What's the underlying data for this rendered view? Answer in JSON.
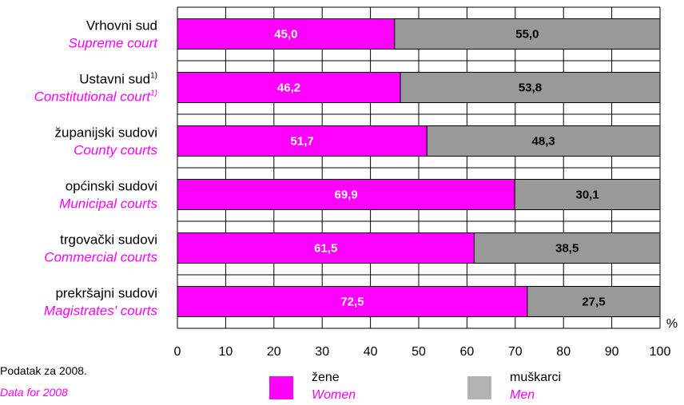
{
  "chart_data": {
    "type": "bar",
    "orientation": "horizontal",
    "stacked": true,
    "categories": [
      {
        "label": "Vrhovni sud",
        "label_en": "Supreme court",
        "footnote": ""
      },
      {
        "label": "Ustavni sud",
        "label_en": "Constitutional court",
        "footnote": "1)"
      },
      {
        "label": "županijski sudovi",
        "label_en": "County courts",
        "footnote": ""
      },
      {
        "label": "općinski sudovi",
        "label_en": "Municipal courts",
        "footnote": ""
      },
      {
        "label": "trgovački sudovi",
        "label_en": "Commercial courts",
        "footnote": ""
      },
      {
        "label": "prekršajni sudovi",
        "label_en": "Magistrates' courts",
        "footnote": ""
      }
    ],
    "series": [
      {
        "name": "žene",
        "name_en": "Women",
        "color": "#ff00ff",
        "values": [
          45.0,
          46.2,
          51.7,
          69.9,
          61.5,
          72.5
        ],
        "labels": [
          "45,0",
          "46,2",
          "51,7",
          "69,9",
          "61,5",
          "72,5"
        ]
      },
      {
        "name": "muškarci",
        "name_en": "Men",
        "color": "#999999",
        "values": [
          55.0,
          53.8,
          48.3,
          30.1,
          38.5,
          27.5
        ],
        "labels": [
          "55,0",
          "53,8",
          "48,3",
          "30,1",
          "38,5",
          "27,5"
        ]
      }
    ],
    "xlim": [
      0,
      100
    ],
    "xticks": [
      0,
      10,
      20,
      30,
      40,
      50,
      60,
      70,
      80,
      90,
      100
    ],
    "unit": "%",
    "grid": true,
    "legend_position": "bottom"
  },
  "note": {
    "line1": "Podatak za 2008.",
    "line2": "Data for 2008"
  },
  "colors": {
    "women": "#ff00ff",
    "men": "#999999",
    "legend_men": "#b3b3b3",
    "grid": "#000000"
  }
}
